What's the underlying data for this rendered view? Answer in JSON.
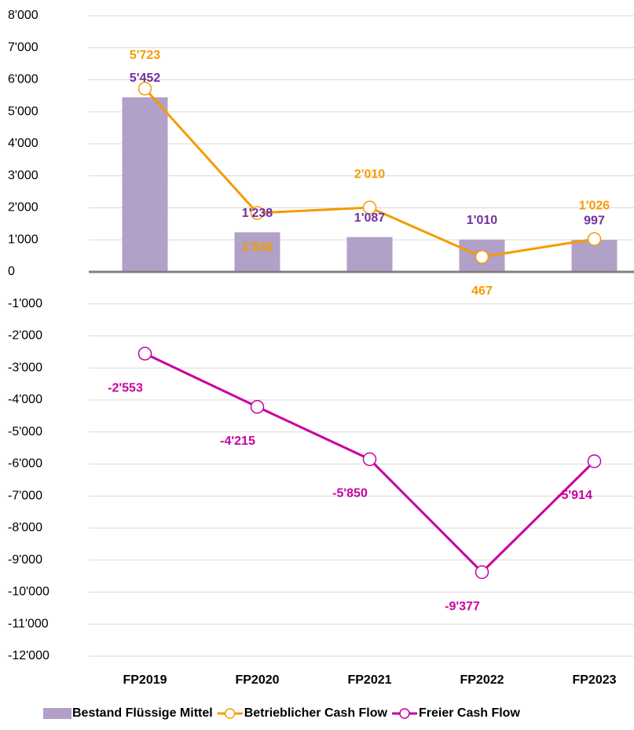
{
  "chart_data": {
    "type": "bar-line",
    "categories": [
      "FP2019",
      "FP2020",
      "FP2021",
      "FP2022",
      "FP2023"
    ],
    "series": [
      {
        "name": "Bestand Flüssige Mittel",
        "type": "bar",
        "color": "#b1a0c7",
        "label_color": "#7030a0",
        "values": [
          5452,
          1238,
          1087,
          1010,
          997
        ],
        "value_labels": [
          "5'452",
          "1'238",
          "1'087",
          "1'010",
          "997"
        ]
      },
      {
        "name": "Betrieblicher Cash Flow",
        "type": "line",
        "color": "#f59b00",
        "values": [
          5723,
          1839,
          2010,
          467,
          1026
        ],
        "value_labels": [
          "5'723",
          "1'839",
          "2'010",
          "467",
          "1'026"
        ]
      },
      {
        "name": "Freier Cash Flow",
        "type": "line",
        "color": "#c800a0",
        "values": [
          -2553,
          -4215,
          -5850,
          -9377,
          -5914
        ],
        "value_labels": [
          "-2'553",
          "-4'215",
          "-5'850",
          "-9'377",
          "-5'914"
        ]
      }
    ],
    "ylim": [
      -12000,
      8000
    ],
    "yticks": [
      {
        "value": -12000,
        "label": "-12'000"
      },
      {
        "value": -11000,
        "label": "-11'000"
      },
      {
        "value": -10000,
        "label": "-10'000"
      },
      {
        "value": -9000,
        "label": "-9'000"
      },
      {
        "value": -8000,
        "label": "-8'000"
      },
      {
        "value": -7000,
        "label": "-7'000"
      },
      {
        "value": -6000,
        "label": "-6'000"
      },
      {
        "value": -5000,
        "label": "-5'000"
      },
      {
        "value": -4000,
        "label": "-4'000"
      },
      {
        "value": -3000,
        "label": "-3'000"
      },
      {
        "value": -2000,
        "label": "-2'000"
      },
      {
        "value": -1000,
        "label": "-1'000"
      },
      0,
      {
        "value": 1000,
        "label": "1'000"
      },
      {
        "value": 2000,
        "label": "2'000"
      },
      {
        "value": 3000,
        "label": "3'000"
      },
      {
        "value": 4000,
        "label": "4'000"
      },
      {
        "value": 5000,
        "label": "5'000"
      },
      {
        "value": 6000,
        "label": "6'000"
      },
      {
        "value": 7000,
        "label": "7'000"
      },
      {
        "value": 8000,
        "label": "8'000"
      }
    ],
    "grid": true,
    "legend": "bottom"
  }
}
